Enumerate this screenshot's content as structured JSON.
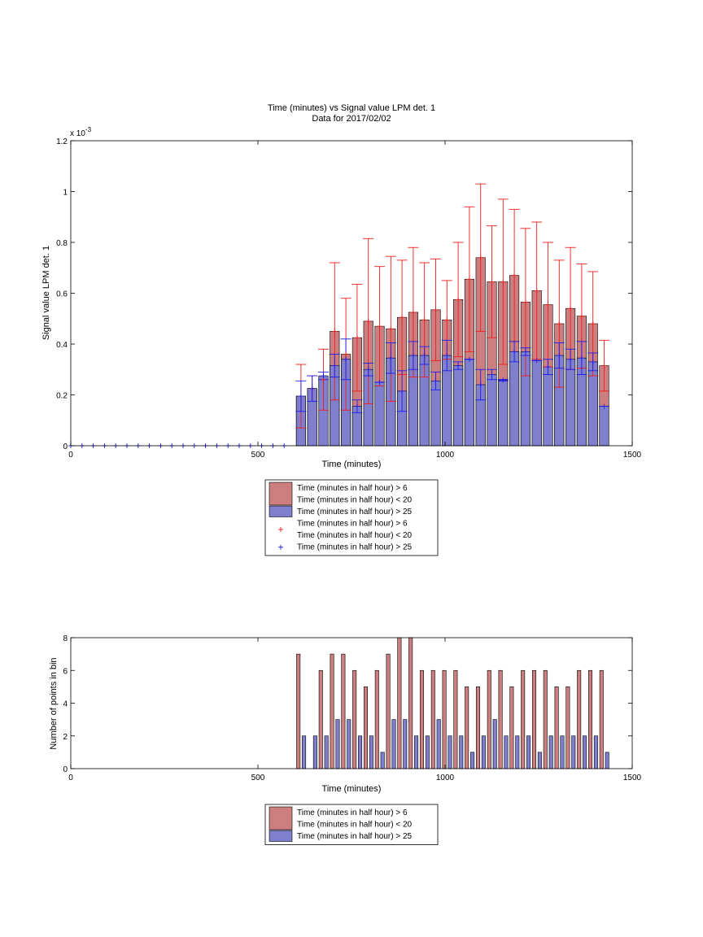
{
  "colors": {
    "red_bar": "#cd7f7f",
    "blue_bar": "#7f7fcd",
    "red_err": "#ee1c1c",
    "blue_err": "#1c1cee",
    "bar_edge": "#000000"
  },
  "chart_data": [
    {
      "type": "bar",
      "title": "Time (minutes) vs Signal value LPM det. 1",
      "subtitle": "Data for 2017/02/02",
      "xlabel": "Time (minutes)",
      "ylabel": "Signal value LPM det. 1",
      "exponent_label": "x 10",
      "exponent": "-3",
      "xlim": [
        0,
        1500
      ],
      "ylim": [
        0,
        0.0012
      ],
      "xticks": [
        "0",
        "500",
        "1000",
        "1500"
      ],
      "yticks": [
        "0",
        "0.2",
        "0.4",
        "0.6",
        "0.8",
        "1",
        "1.2"
      ],
      "ytick_values": [
        0,
        0.0002,
        0.0004,
        0.0006,
        0.0008,
        0.001,
        0.0012
      ],
      "legend": {
        "placement": "below",
        "entries": [
          {
            "kind": "bar",
            "series": "red",
            "lines": [
              "Time (minutes in half hour) > 6",
              "Time (minutes in half hour) < 20"
            ]
          },
          {
            "kind": "bar",
            "series": "blue",
            "lines": [
              "Time (minutes in half hour) > 25"
            ]
          },
          {
            "kind": "marker",
            "series": "red",
            "lines": [
              "Time (minutes in half hour) > 6",
              "Time (minutes in half hour) < 20"
            ]
          },
          {
            "kind": "marker",
            "series": "blue",
            "lines": [
              "Time (minutes in half hour) > 25"
            ]
          }
        ]
      },
      "red_series": {
        "x": [
          615,
          645,
          675,
          705,
          735,
          765,
          795,
          825,
          855,
          885,
          915,
          945,
          975,
          1005,
          1035,
          1065,
          1095,
          1125,
          1155,
          1185,
          1215,
          1245,
          1275,
          1305,
          1335,
          1365,
          1395,
          1425
        ],
        "y": [
          0.000195,
          0.000225,
          0.00026,
          0.00045,
          0.00036,
          0.000425,
          0.00049,
          0.00047,
          0.00046,
          0.000505,
          0.000525,
          0.000495,
          0.000535,
          0.000495,
          0.000575,
          0.000655,
          0.00074,
          0.000645,
          0.000645,
          0.00067,
          0.000565,
          0.00061,
          0.000555,
          0.00048,
          0.00054,
          0.00051,
          0.00048,
          0.000315
        ],
        "err": [
          0.000125,
          5e-05,
          0.00012,
          0.00027,
          0.00022,
          0.00021,
          0.000325,
          0.000235,
          0.000285,
          0.000225,
          0.000255,
          0.000225,
          0.0002,
          0.000155,
          0.000225,
          0.000285,
          0.00029,
          0.00022,
          0.000325,
          0.00026,
          0.00029,
          0.00027,
          0.000245,
          0.00025,
          0.00024,
          0.000205,
          0.000205,
          0.0001
        ],
        "low_cap": [
          true,
          false,
          true,
          true,
          true,
          true,
          true,
          true,
          true,
          true,
          true,
          true,
          true,
          true,
          true,
          true,
          true,
          true,
          true,
          true,
          true,
          true,
          true,
          true,
          true,
          true,
          true,
          true
        ]
      },
      "blue_series": {
        "x": [
          615,
          645,
          675,
          705,
          735,
          765,
          795,
          825,
          855,
          885,
          915,
          945,
          975,
          1005,
          1035,
          1065,
          1095,
          1125,
          1155,
          1185,
          1215,
          1245,
          1275,
          1305,
          1335,
          1365,
          1395,
          1425
        ],
        "y": [
          0.000195,
          0.000225,
          0.000275,
          0.000315,
          0.00034,
          0.000155,
          0.0003,
          0.00025,
          0.000345,
          0.000215,
          0.000355,
          0.000355,
          0.000255,
          0.000355,
          0.000315,
          0.00034,
          0.00024,
          0.00028,
          0.000258,
          0.00037,
          0.00037,
          0.000335,
          0.00031,
          0.000355,
          0.00034,
          0.000345,
          0.00033,
          0.000155
        ],
        "err": [
          6e-05,
          5e-05,
          1.5e-05,
          4.5e-05,
          8e-05,
          2.5e-05,
          2.5e-05,
          0.0,
          6e-05,
          8e-05,
          5.5e-05,
          3.5e-05,
          3.5e-05,
          6e-05,
          1.5e-05,
          0.0,
          6e-05,
          2e-05,
          3e-06,
          4e-05,
          1.5e-05,
          0.0,
          3e-05,
          5e-05,
          4e-05,
          6.5e-05,
          3.5e-05,
          0.0
        ]
      },
      "zero_markers_x": [
        0,
        30,
        60,
        90,
        120,
        150,
        180,
        210,
        240,
        270,
        300,
        330,
        360,
        390,
        420,
        450,
        480,
        510,
        540,
        570
      ]
    },
    {
      "type": "bar",
      "xlabel": "Time (minutes)",
      "ylabel": "Number of points in bin",
      "xlim": [
        0,
        1500
      ],
      "ylim": [
        0,
        8
      ],
      "xticks": [
        "0",
        "500",
        "1000",
        "1500"
      ],
      "yticks": [
        "0",
        "2",
        "4",
        "6",
        "8"
      ],
      "ytick_values": [
        0,
        2,
        4,
        6,
        8
      ],
      "legend": {
        "placement": "below",
        "entries": [
          {
            "kind": "bar",
            "series": "red",
            "lines": [
              "Time (minutes in half hour) > 6",
              "Time (minutes in half hour) < 20"
            ]
          },
          {
            "kind": "bar",
            "series": "blue",
            "lines": [
              "Time (minutes in half hour) > 25"
            ]
          }
        ]
      },
      "red_series": {
        "x": [
          608,
          638,
          668,
          698,
          728,
          758,
          788,
          818,
          848,
          878,
          908,
          938,
          968,
          998,
          1028,
          1058,
          1088,
          1118,
          1148,
          1178,
          1208,
          1238,
          1268,
          1298,
          1328,
          1358,
          1388,
          1418
        ],
        "y": [
          7,
          0,
          6,
          7,
          7,
          6,
          5,
          6,
          7,
          8,
          8,
          6,
          6,
          6,
          6,
          5,
          5,
          6,
          6,
          5,
          6,
          6,
          6,
          5,
          5,
          6,
          6,
          6
        ]
      },
      "blue_series": {
        "x": [
          623,
          653,
          683,
          713,
          743,
          773,
          803,
          833,
          863,
          893,
          923,
          953,
          983,
          1013,
          1043,
          1073,
          1103,
          1133,
          1163,
          1193,
          1223,
          1253,
          1283,
          1313,
          1343,
          1373,
          1403,
          1433
        ],
        "y": [
          2,
          2,
          2,
          3,
          3,
          2,
          2,
          1,
          3,
          3,
          2,
          2,
          3,
          2,
          2,
          1,
          2,
          3,
          2,
          2,
          2,
          1,
          2,
          2,
          2,
          2,
          2,
          1
        ]
      }
    }
  ]
}
